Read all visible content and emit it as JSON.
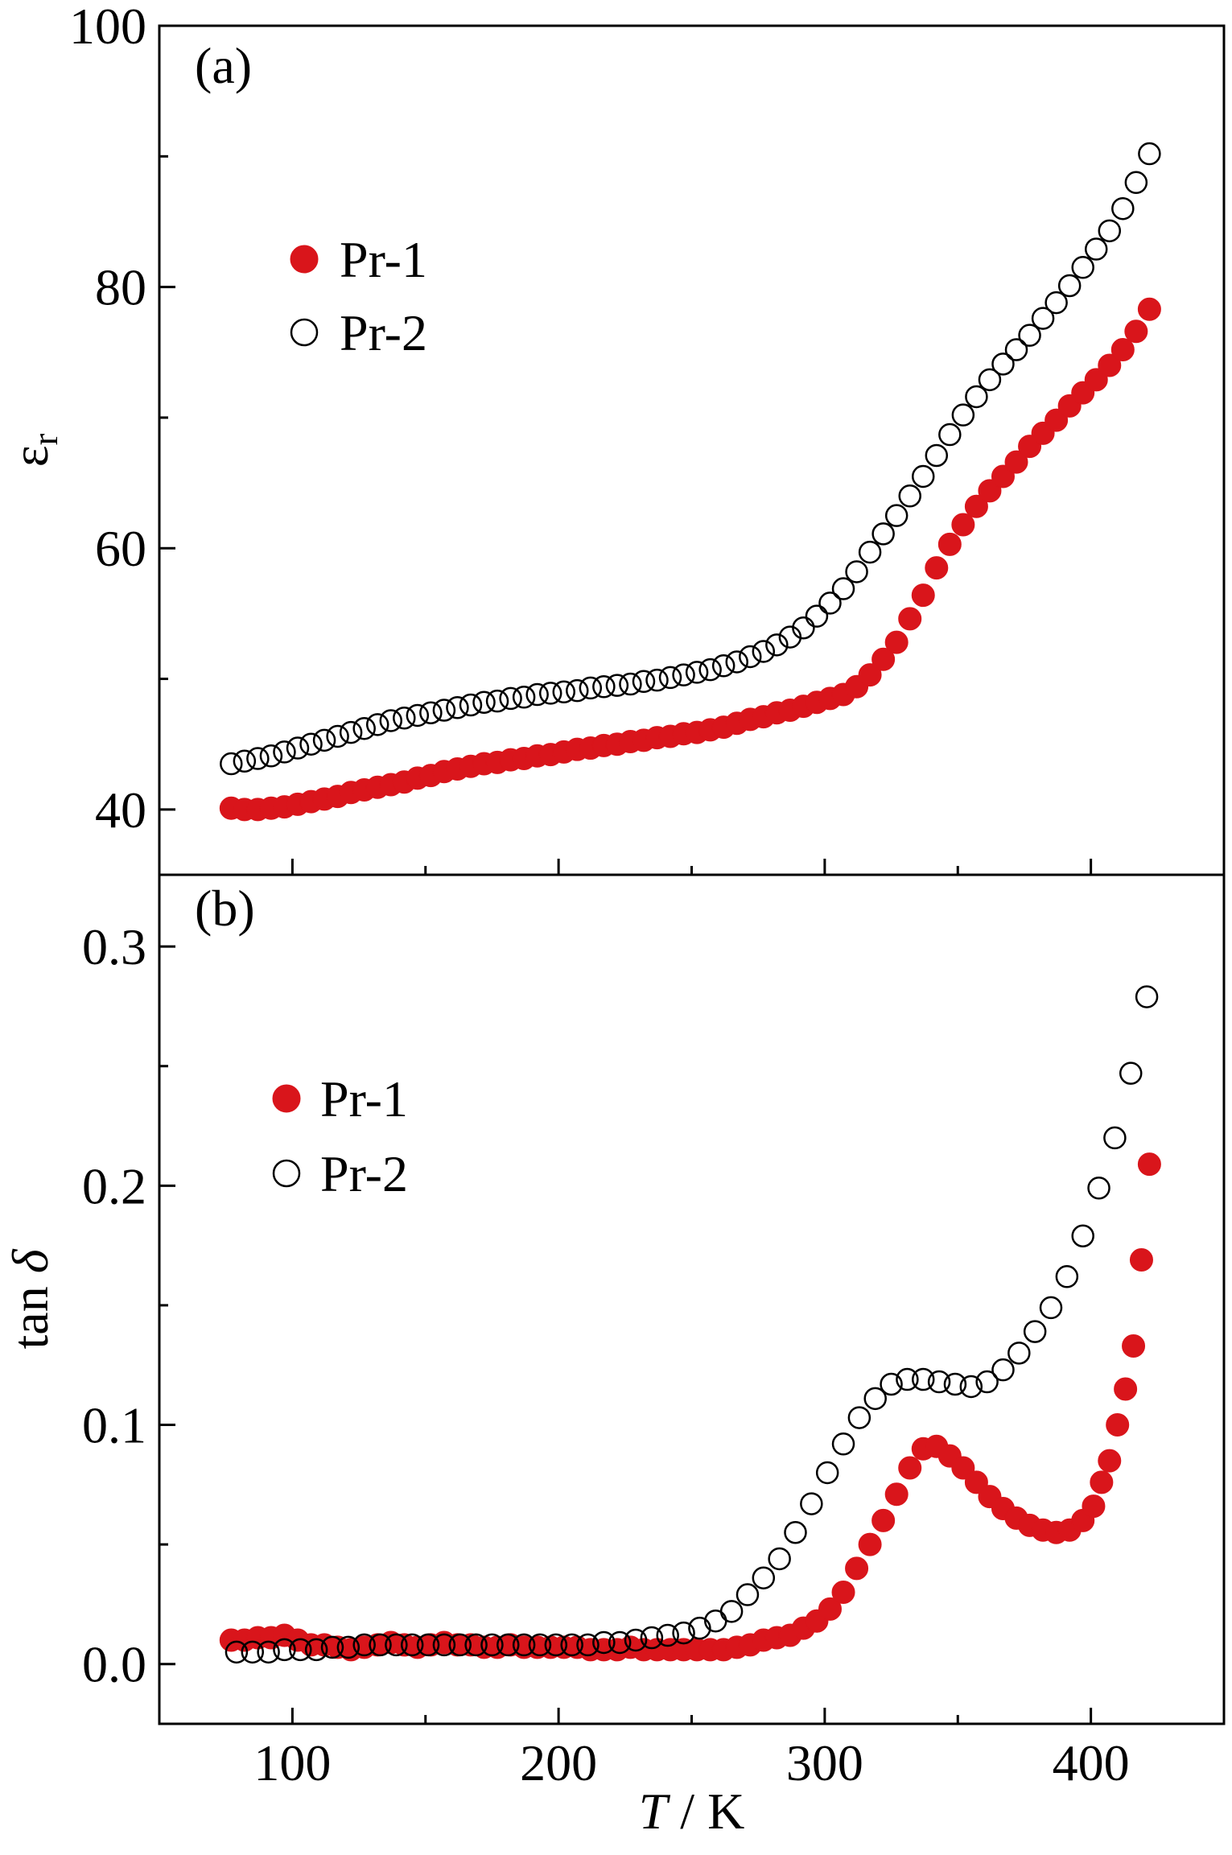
{
  "chart_data": [
    {
      "type": "scatter",
      "title": "(a)",
      "ylabel": [
        "ε",
        "r"
      ],
      "xlim": [
        50,
        450
      ],
      "ylim": [
        35,
        100
      ],
      "yticks": [
        40,
        60,
        80,
        100
      ],
      "yminorticks": [
        50,
        70,
        90
      ],
      "series": [
        {
          "name": "Pr-1",
          "color": "#d9151b",
          "filled": true,
          "x": [
            77,
            82,
            87,
            92,
            97,
            102,
            107,
            112,
            117,
            122,
            127,
            132,
            137,
            142,
            147,
            152,
            157,
            162,
            167,
            172,
            177,
            182,
            187,
            192,
            197,
            202,
            207,
            212,
            217,
            222,
            227,
            232,
            237,
            242,
            247,
            252,
            257,
            262,
            267,
            272,
            277,
            282,
            287,
            292,
            297,
            302,
            307,
            312,
            317,
            322,
            327,
            332,
            337,
            342,
            347,
            352,
            357,
            362,
            367,
            372,
            377,
            382,
            387,
            392,
            397,
            402,
            407,
            412,
            417,
            422
          ],
          "values": [
            40.1,
            40.0,
            40.0,
            40.1,
            40.2,
            40.4,
            40.6,
            40.8,
            41.0,
            41.3,
            41.5,
            41.7,
            41.9,
            42.1,
            42.4,
            42.6,
            42.9,
            43.1,
            43.3,
            43.5,
            43.6,
            43.8,
            43.9,
            44.1,
            44.2,
            44.4,
            44.6,
            44.7,
            44.9,
            45.0,
            45.2,
            45.3,
            45.5,
            45.6,
            45.8,
            45.9,
            46.1,
            46.3,
            46.6,
            46.9,
            47.1,
            47.4,
            47.6,
            47.9,
            48.2,
            48.5,
            48.8,
            49.4,
            50.3,
            51.5,
            52.8,
            54.6,
            56.4,
            58.5,
            60.3,
            61.8,
            63.2,
            64.4,
            65.5,
            66.6,
            67.8,
            68.8,
            69.8,
            70.9,
            71.9,
            72.9,
            74.0,
            75.2,
            76.6,
            78.3
          ]
        },
        {
          "name": "Pr-2",
          "color": "#000000",
          "filled": false,
          "x": [
            77,
            82,
            87,
            92,
            97,
            102,
            107,
            112,
            117,
            122,
            127,
            132,
            137,
            142,
            147,
            152,
            157,
            162,
            167,
            172,
            177,
            182,
            187,
            192,
            197,
            202,
            207,
            212,
            217,
            222,
            227,
            232,
            237,
            242,
            247,
            252,
            257,
            262,
            267,
            272,
            277,
            282,
            287,
            292,
            297,
            302,
            307,
            312,
            317,
            322,
            327,
            332,
            337,
            342,
            347,
            352,
            357,
            362,
            367,
            372,
            377,
            382,
            387,
            392,
            397,
            402,
            407,
            412,
            417,
            422
          ],
          "values": [
            43.5,
            43.7,
            43.9,
            44.1,
            44.4,
            44.7,
            45.0,
            45.3,
            45.6,
            45.9,
            46.2,
            46.5,
            46.8,
            47.0,
            47.2,
            47.4,
            47.6,
            47.8,
            48.0,
            48.2,
            48.3,
            48.5,
            48.6,
            48.8,
            48.9,
            49.0,
            49.1,
            49.3,
            49.4,
            49.5,
            49.6,
            49.8,
            49.9,
            50.1,
            50.3,
            50.5,
            50.7,
            51.0,
            51.3,
            51.7,
            52.1,
            52.6,
            53.2,
            53.9,
            54.8,
            55.8,
            56.9,
            58.2,
            59.7,
            61.1,
            62.5,
            64.0,
            65.5,
            67.1,
            68.7,
            70.2,
            71.6,
            72.9,
            74.1,
            75.2,
            76.3,
            77.6,
            78.8,
            80.1,
            81.5,
            82.9,
            84.3,
            86.0,
            88.0,
            90.2
          ]
        }
      ]
    },
    {
      "type": "scatter",
      "title": "(b)",
      "ylabel": [
        "tan ",
        "δ"
      ],
      "xlabel": [
        "T",
        " / K"
      ],
      "xlim": [
        50,
        450
      ],
      "xticks": [
        100,
        200,
        300,
        400
      ],
      "xminorticks": [
        150,
        250,
        350
      ],
      "ylim": [
        -0.025,
        0.33
      ],
      "yticks": [
        {
          "value": 0,
          "label": "0.0"
        },
        {
          "value": 0.1,
          "label": "0.1"
        },
        {
          "value": 0.2,
          "label": "0.2"
        },
        {
          "value": 0.3,
          "label": "0.3"
        }
      ],
      "yminorticks": [
        0.05,
        0.15,
        0.25
      ],
      "series": [
        {
          "name": "Pr-1",
          "color": "#d9151b",
          "filled": true,
          "x": [
            77,
            82,
            87,
            92,
            97,
            102,
            107,
            112,
            117,
            122,
            127,
            132,
            137,
            142,
            147,
            152,
            157,
            162,
            167,
            172,
            177,
            182,
            187,
            192,
            197,
            202,
            207,
            212,
            217,
            222,
            227,
            232,
            237,
            242,
            247,
            252,
            257,
            262,
            267,
            272,
            277,
            282,
            287,
            292,
            297,
            302,
            307,
            312,
            317,
            322,
            327,
            332,
            337,
            342,
            347,
            352,
            357,
            362,
            367,
            372,
            377,
            382,
            387,
            392,
            397,
            401,
            404,
            407,
            410,
            413,
            416,
            419,
            422
          ],
          "values": [
            0.01,
            0.01,
            0.011,
            0.011,
            0.012,
            0.01,
            0.008,
            0.008,
            0.007,
            0.006,
            0.007,
            0.008,
            0.009,
            0.008,
            0.007,
            0.008,
            0.009,
            0.008,
            0.008,
            0.007,
            0.007,
            0.008,
            0.007,
            0.007,
            0.007,
            0.007,
            0.007,
            0.006,
            0.006,
            0.006,
            0.007,
            0.006,
            0.006,
            0.006,
            0.006,
            0.006,
            0.006,
            0.006,
            0.007,
            0.008,
            0.01,
            0.011,
            0.012,
            0.015,
            0.018,
            0.023,
            0.03,
            0.04,
            0.05,
            0.06,
            0.071,
            0.082,
            0.09,
            0.091,
            0.087,
            0.082,
            0.076,
            0.07,
            0.065,
            0.061,
            0.058,
            0.056,
            0.055,
            0.056,
            0.06,
            0.066,
            0.076,
            0.085,
            0.1,
            0.115,
            0.133,
            0.169,
            0.209
          ]
        },
        {
          "name": "Pr-2",
          "color": "#000000",
          "filled": false,
          "x": [
            79,
            85,
            91,
            97,
            103,
            109,
            115,
            121,
            127,
            133,
            139,
            145,
            151,
            157,
            163,
            169,
            175,
            181,
            187,
            193,
            199,
            205,
            211,
            217,
            223,
            229,
            235,
            241,
            247,
            253,
            259,
            265,
            271,
            277,
            283,
            289,
            295,
            301,
            307,
            313,
            319,
            325,
            331,
            337,
            343,
            349,
            355,
            361,
            367,
            373,
            379,
            385,
            391,
            397,
            403,
            409,
            415,
            421
          ],
          "values": [
            0.005,
            0.005,
            0.005,
            0.006,
            0.006,
            0.006,
            0.007,
            0.007,
            0.008,
            0.008,
            0.008,
            0.008,
            0.008,
            0.008,
            0.008,
            0.008,
            0.008,
            0.008,
            0.008,
            0.008,
            0.008,
            0.008,
            0.008,
            0.009,
            0.009,
            0.01,
            0.011,
            0.012,
            0.013,
            0.015,
            0.018,
            0.022,
            0.029,
            0.036,
            0.044,
            0.055,
            0.067,
            0.08,
            0.092,
            0.103,
            0.111,
            0.117,
            0.119,
            0.119,
            0.118,
            0.117,
            0.116,
            0.118,
            0.123,
            0.13,
            0.139,
            0.149,
            0.162,
            0.179,
            0.199,
            0.22,
            0.247,
            0.279
          ]
        }
      ]
    }
  ]
}
